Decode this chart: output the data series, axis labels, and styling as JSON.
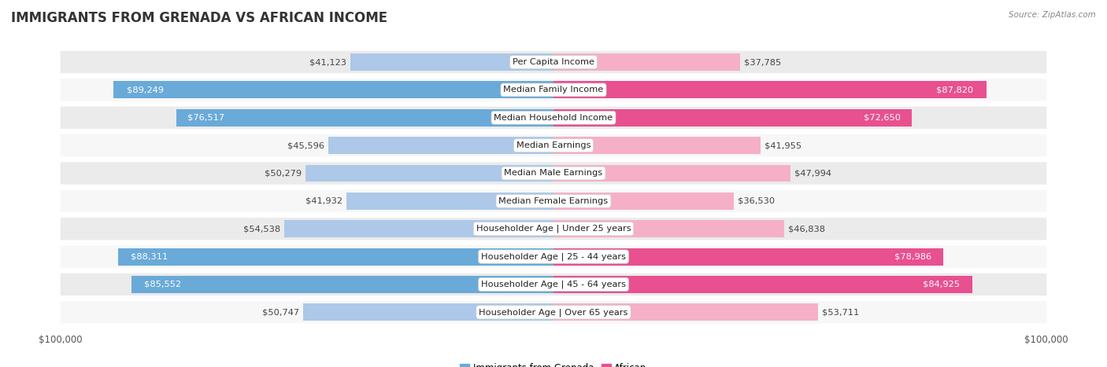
{
  "title": "IMMIGRANTS FROM GRENADA VS AFRICAN INCOME",
  "source": "Source: ZipAtlas.com",
  "categories": [
    "Per Capita Income",
    "Median Family Income",
    "Median Household Income",
    "Median Earnings",
    "Median Male Earnings",
    "Median Female Earnings",
    "Householder Age | Under 25 years",
    "Householder Age | 25 - 44 years",
    "Householder Age | 45 - 64 years",
    "Householder Age | Over 65 years"
  ],
  "grenada_values": [
    41123,
    89249,
    76517,
    45596,
    50279,
    41932,
    54538,
    88311,
    85552,
    50747
  ],
  "african_values": [
    37785,
    87820,
    72650,
    41955,
    47994,
    36530,
    46838,
    78986,
    84925,
    53711
  ],
  "grenada_labels": [
    "$41,123",
    "$89,249",
    "$76,517",
    "$45,596",
    "$50,279",
    "$41,932",
    "$54,538",
    "$88,311",
    "$85,552",
    "$50,747"
  ],
  "african_labels": [
    "$37,785",
    "$87,820",
    "$72,650",
    "$41,955",
    "$47,994",
    "$36,530",
    "$46,838",
    "$78,986",
    "$84,925",
    "$53,711"
  ],
  "max_value": 100000,
  "grenada_color_light": "#adc8e8",
  "grenada_color_dark": "#6aaad8",
  "african_color_light": "#f5b0c8",
  "african_color_dark": "#e85090",
  "bg_row_odd": "#ebebeb",
  "bg_row_even": "#f7f7f7",
  "title_fontsize": 12,
  "label_fontsize": 8.2,
  "value_fontsize": 8.2,
  "tick_fontsize": 8.5,
  "legend_fontsize": 8.5,
  "grenada_threshold": 60000,
  "african_threshold": 60000
}
